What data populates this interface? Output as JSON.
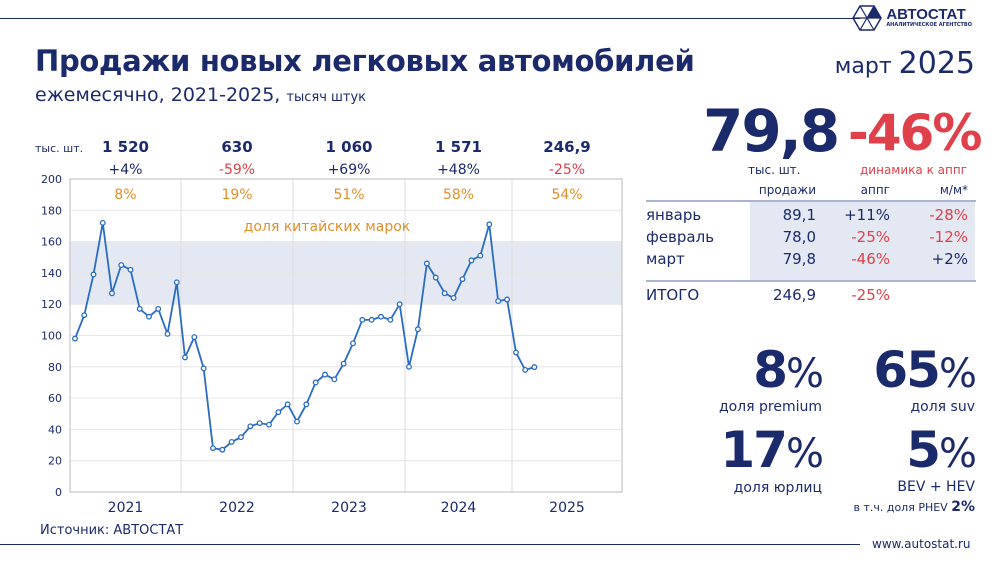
{
  "title": "Продажи новых легковых автомобилей",
  "subtitle": "ежемесячно, 2021-2025,",
  "subtitle_unit": "тысяч штук",
  "period": {
    "month": "март",
    "year": "2025"
  },
  "logo": {
    "name": "АВТОСТАТ",
    "tagline": "АНАЛИТИЧЕСКОЕ АГЕНТСТВО"
  },
  "colors": {
    "navy": "#1b2a6b",
    "line": "#2a6cc4",
    "red": "#e0404a",
    "orange": "#e0902a",
    "band": "#e3e8f2"
  },
  "chart_data": {
    "type": "line",
    "unit_label": "тыс. шт.",
    "ylim": [
      0,
      200
    ],
    "yticks": [
      0,
      20,
      40,
      60,
      80,
      100,
      120,
      140,
      160,
      180,
      200
    ],
    "grid": true,
    "band": {
      "range": [
        120,
        160
      ],
      "label": "доля китайских марок"
    },
    "years": [
      {
        "label": "2021",
        "total": "1 520",
        "change": "+4%",
        "china_share": "8%",
        "values": [
          98,
          113,
          139,
          172,
          127,
          145,
          142,
          117,
          112,
          117,
          101,
          134
        ]
      },
      {
        "label": "2022",
        "total": "630",
        "change": "-59%",
        "china_share": "19%",
        "values": [
          86,
          99,
          79,
          28,
          27,
          32,
          35,
          42,
          44,
          43,
          51,
          56
        ]
      },
      {
        "label": "2023",
        "total": "1 060",
        "change": "+69%",
        "china_share": "51%",
        "values": [
          45,
          56,
          70,
          75,
          72,
          82,
          95,
          110,
          110,
          112,
          110,
          120
        ]
      },
      {
        "label": "2024",
        "total": "1 571",
        "change": "+48%",
        "china_share": "58%",
        "values": [
          80,
          104,
          146,
          137,
          127,
          124,
          136,
          148,
          151,
          171,
          122,
          123
        ]
      },
      {
        "label": "2025",
        "total": "246,9",
        "change": "-25%",
        "china_share": "54%",
        "values": [
          89.1,
          78.0,
          79.8
        ]
      }
    ]
  },
  "headline": {
    "value": "79,8",
    "value_unit": "тыс. шт.",
    "change": "-46%",
    "change_label": "динамика к аппг"
  },
  "table": {
    "headers": [
      "продажи",
      "аппг",
      "м/м*"
    ],
    "rows": [
      {
        "month": "январь",
        "sales": "89,1",
        "yoy": "+11%",
        "mom": "-28%"
      },
      {
        "month": "февраль",
        "sales": "78,0",
        "yoy": "-25%",
        "mom": "-12%"
      },
      {
        "month": "март",
        "sales": "79,8",
        "yoy": "-46%",
        "mom": "+2%"
      }
    ],
    "total": {
      "label": "ИТОГО",
      "sales": "246,9",
      "yoy": "-25%"
    }
  },
  "stats": [
    {
      "value": "8",
      "label": "доля premium"
    },
    {
      "value": "65",
      "label": "доля suv"
    },
    {
      "value": "17",
      "label": "доля юрлиц"
    },
    {
      "value": "5",
      "label": "BEV + HEV",
      "note": "в т.ч. доля PHEV",
      "note_value": "2"
    }
  ],
  "source": "Источник: АВТОСТАТ",
  "website": "www.autostat.ru"
}
